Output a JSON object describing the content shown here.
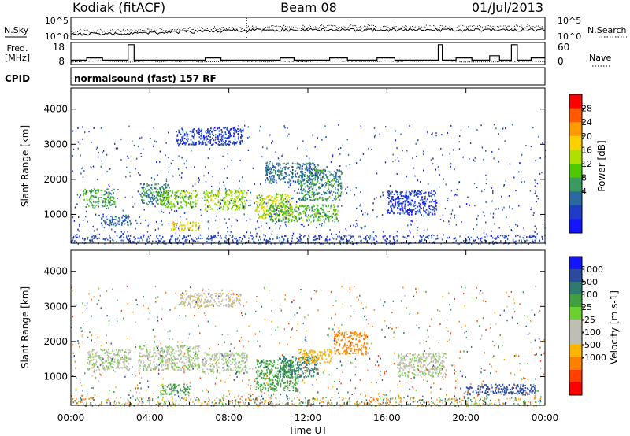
{
  "header": {
    "station": "Kodiak (fitACF)",
    "beam": "Beam 08",
    "date": "01/Jul/2013"
  },
  "noise_panel": {
    "left_label": "N.Sky",
    "right_label": "N.Search",
    "left_ticks": [
      "10^5",
      "10^0"
    ],
    "right_ticks": [
      "10^5",
      "10^0"
    ]
  },
  "freq_panel": {
    "left_label_line1": "Freq.",
    "left_label_line2": "[MHz]",
    "right_label": "Nave",
    "left_ticks": [
      "18",
      "8"
    ],
    "right_ticks": [
      "60",
      "0"
    ]
  },
  "cpid": {
    "label": "CPID",
    "text": "normalsound (fast) 157 RF"
  },
  "power_colorbar": {
    "label": "Power [dB]",
    "ticks": [
      "28",
      "24",
      "20",
      "16",
      "12",
      "8",
      "4"
    ],
    "colors": [
      "#ff0000",
      "#ff5a00",
      "#ff9a00",
      "#ffd000",
      "#b0e000",
      "#4ec800",
      "#3a9a60",
      "#2a6aa0",
      "#1e3cc8",
      "#1414ff"
    ]
  },
  "velocity_colorbar": {
    "label": "Velocity [m s-1]",
    "ticks": [
      "1000",
      "500",
      "100",
      "25",
      "-25",
      "-100",
      "-500",
      "-1000"
    ],
    "colors": [
      "#1414ff",
      "#2a4aa0",
      "#2e7a70",
      "#3ea040",
      "#6cd030",
      "#bebeb4",
      "#bebeb4",
      "#ffb400",
      "#ff8000",
      "#ff4000",
      "#ff0000"
    ]
  },
  "chart_data": [
    {
      "type": "heatmap",
      "panel": "power",
      "ylabel": "Slant Range [km]",
      "xlabel": "Time UT",
      "x_ticks": [
        "00:00",
        "04:00",
        "08:00",
        "12:00",
        "16:00",
        "20:00",
        "00:00"
      ],
      "y_ticks": [
        1000,
        2000,
        3000,
        4000
      ],
      "xlim_hours": [
        0,
        24
      ],
      "ylim_km": [
        180,
        4600
      ],
      "echo_regions": [
        {
          "t0": 0.6,
          "t1": 2.2,
          "r0": 1200,
          "r1": 1750,
          "power": 14
        },
        {
          "t0": 1.5,
          "t1": 3.0,
          "r0": 700,
          "r1": 1000,
          "power": 9
        },
        {
          "t0": 3.5,
          "t1": 5.0,
          "r0": 1300,
          "r1": 1900,
          "power": 12
        },
        {
          "t0": 4.5,
          "t1": 6.4,
          "r0": 1200,
          "r1": 1700,
          "power": 17
        },
        {
          "t0": 5.0,
          "t1": 6.5,
          "r0": 550,
          "r1": 800,
          "power": 22
        },
        {
          "t0": 6.7,
          "t1": 8.9,
          "r0": 1150,
          "r1": 1700,
          "power": 18
        },
        {
          "t0": 5.3,
          "t1": 8.7,
          "r0": 3000,
          "r1": 3500,
          "power": 6
        },
        {
          "t0": 9.3,
          "t1": 11.2,
          "r0": 900,
          "r1": 1600,
          "power": 19
        },
        {
          "t0": 10.0,
          "t1": 13.5,
          "r0": 800,
          "r1": 1300,
          "power": 15
        },
        {
          "t0": 9.8,
          "t1": 12.5,
          "r0": 1900,
          "r1": 2500,
          "power": 10
        },
        {
          "t0": 11.5,
          "t1": 13.7,
          "r0": 1400,
          "r1": 2300,
          "power": 12
        },
        {
          "t0": 16.0,
          "t1": 18.5,
          "r0": 1000,
          "r1": 1700,
          "power": 6
        }
      ]
    },
    {
      "type": "heatmap",
      "panel": "velocity",
      "ylabel": "Slant Range [km]",
      "xlabel": "Time UT",
      "x_ticks": [
        "00:00",
        "04:00",
        "08:00",
        "12:00",
        "16:00",
        "20:00",
        "00:00"
      ],
      "y_ticks": [
        1000,
        2000,
        3000,
        4000
      ],
      "xlim_hours": [
        0,
        24
      ],
      "ylim_km": [
        180,
        4600
      ],
      "echo_regions": [
        {
          "t0": 0.8,
          "t1": 3.0,
          "r0": 1200,
          "r1": 1800,
          "velocity": 0
        },
        {
          "t0": 3.4,
          "t1": 6.5,
          "r0": 1200,
          "r1": 1900,
          "velocity": 0
        },
        {
          "t0": 4.5,
          "t1": 6.0,
          "r0": 500,
          "r1": 800,
          "velocity": 150
        },
        {
          "t0": 6.6,
          "t1": 8.9,
          "r0": 1100,
          "r1": 1700,
          "velocity": 0
        },
        {
          "t0": 5.5,
          "t1": 8.6,
          "r0": 3000,
          "r1": 3400,
          "velocity": -60
        },
        {
          "t0": 9.3,
          "t1": 11.5,
          "r0": 600,
          "r1": 1500,
          "velocity": 150
        },
        {
          "t0": 10.5,
          "t1": 12.5,
          "r0": 1000,
          "r1": 1600,
          "velocity": 300
        },
        {
          "t0": 11.5,
          "t1": 13.2,
          "r0": 1400,
          "r1": 1800,
          "velocity": -150
        },
        {
          "t0": 13.3,
          "t1": 15.0,
          "r0": 1650,
          "r1": 2300,
          "velocity": -300
        },
        {
          "t0": 16.5,
          "t1": 19.0,
          "r0": 1000,
          "r1": 1700,
          "velocity": 0
        },
        {
          "t0": 20.0,
          "t1": 23.5,
          "r0": 500,
          "r1": 800,
          "velocity": 600
        }
      ]
    }
  ]
}
